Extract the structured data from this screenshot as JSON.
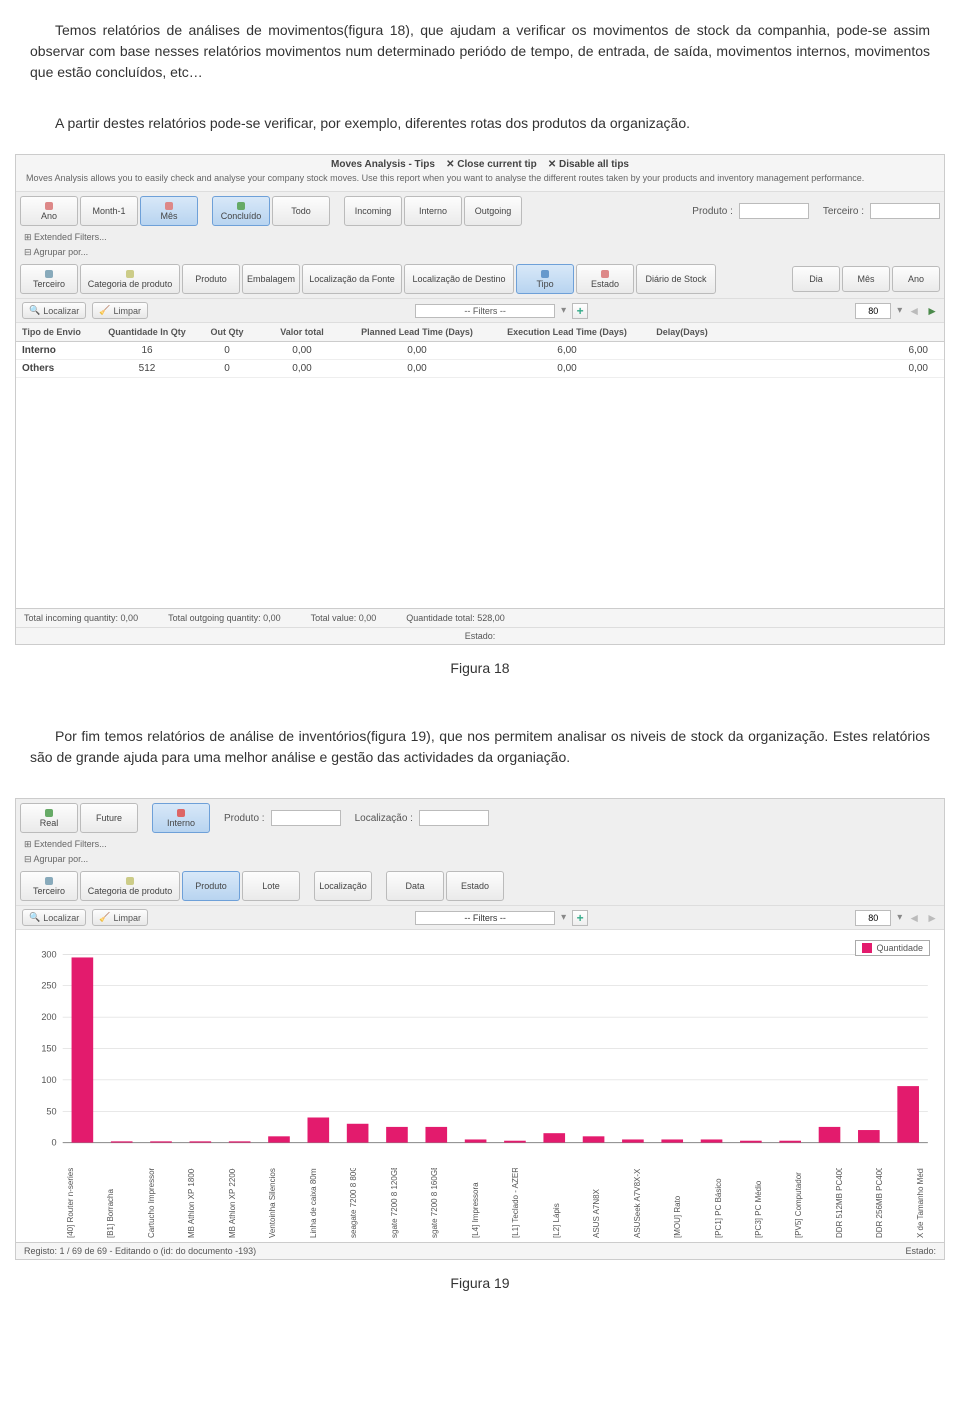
{
  "doc": {
    "para1": "Temos relatórios de análises de movimentos(figura 18), que ajudam a verificar os movimentos de stock da companhia, pode-se assim observar com base nesses relatórios movimentos num determinado periódo de tempo, de entrada, de saída, movimentos internos, movimentos que estão concluídos, etc…",
    "para2": "A partir destes relatórios pode-se verificar, por exemplo, diferentes rotas dos produtos da organização.",
    "para3": "Por fim temos relatórios de análise de inventórios(figura 19), que nos permitem analisar os niveis de stock da organização. Estes relatórios são de grande ajuda para uma melhor análise e gestão das actividades da organiação.",
    "fig18": "Figura 18",
    "fig19": "Figura 19"
  },
  "s1": {
    "tips_title": "Moves Analysis - Tips",
    "tips_close": "✕ Close current tip",
    "tips_disable": "✕ Disable all tips",
    "tips_desc": "Moves Analysis allows you to easily check and analyse your company stock moves. Use this report when you want to analyse the different routes taken by your products and inventory management performance.",
    "row1": [
      "Ano",
      "Month-1",
      "Mês",
      "Concluído",
      "Todo",
      "Incoming",
      "Interno",
      "Outgoing"
    ],
    "produto_label": "Produto :",
    "terceiro_label": "Terceiro :",
    "extended": "⊞ Extended Filters...",
    "agrupar": "⊟ Agrupar por...",
    "row2": [
      "Terceiro",
      "Categoria de produto",
      "Produto",
      "Embalagem",
      "Localização da Fonte",
      "Localização de Destino",
      "Tipo",
      "Estado",
      "Diário de Stock"
    ],
    "row2_right": [
      "Dia",
      "Mês",
      "Ano"
    ],
    "localizar": "Localizar",
    "limpar": "Limpar",
    "filters_label": "-- Filters --",
    "page": "80",
    "table_headers": [
      "Tipo de Envio",
      "Quantidade In Qty",
      "Out Qty",
      "Valor total",
      "Planned Lead Time (Days)",
      "Execution Lead Time (Days)",
      "Delay(Days)"
    ],
    "rows": [
      {
        "type": "Interno",
        "in": "16",
        "out": "0",
        "val": "0,00",
        "plan": "0,00",
        "exec": "6,00",
        "delay": "",
        "last": "6,00"
      },
      {
        "type": "Others",
        "in": "512",
        "out": "0",
        "val": "0,00",
        "plan": "0,00",
        "exec": "0,00",
        "delay": "",
        "last": "0,00"
      }
    ],
    "footer": {
      "in": "Total incoming quantity: 0,00",
      "out": "Total outgoing quantity: 0,00",
      "val": "Total value: 0,00",
      "tot": "Quantidade total: 528,00"
    },
    "estado_label": "Estado:"
  },
  "s2": {
    "row1": [
      "Real",
      "Future",
      "Interno"
    ],
    "produto_label": "Produto :",
    "loc_label": "Localização :",
    "extended": "⊞ Extended Filters...",
    "agrupar": "⊟ Agrupar por...",
    "row2": [
      "Terceiro",
      "Categoria de produto",
      "Produto",
      "Lote",
      "Localização",
      "Data",
      "Estado"
    ],
    "localizar": "Localizar",
    "limpar": "Limpar",
    "filters_label": "-- Filters --",
    "page": "80",
    "chart": {
      "ymax": 300,
      "ytick_step": 50,
      "bar_color": "#e31b6d",
      "grid_color": "#d0d0d0",
      "bg": "#ffffff",
      "categories": [
        "[40] Router n-series",
        "[B1] Borracha",
        "Cartucho Impressora",
        "MB Athlon XP 1800+",
        "MB Athlon XP 2200+",
        "Ventoinha Silenciosa",
        "Linha de caixa 80mm",
        "seagate 7200 8 80GB",
        "sgate 7200 8 120GB",
        "sgate 7200 8 160GB",
        "[L4] Impressora",
        "[L1] Teclado - AZERTY",
        "[L2] Lápis",
        "ASUS A7N8X",
        "ASUSeek A7V8X-X",
        "[MOU] Rato",
        "[PC1] PC Básico",
        "[PC3] PC Médio",
        "[PV5] Computador",
        "DDR 512MB PC400",
        "DDR 256MB PC400",
        "X de Tamanho Médio"
      ],
      "values": [
        295,
        2,
        2,
        2,
        2,
        10,
        40,
        30,
        25,
        25,
        5,
        3,
        15,
        10,
        5,
        5,
        5,
        3,
        3,
        25,
        20,
        90
      ]
    },
    "legend": "Quantidade",
    "status_left": "Registo: 1 / 69 de 69 - Editando o (id: do documento -193)",
    "status_right": "Estado:"
  }
}
